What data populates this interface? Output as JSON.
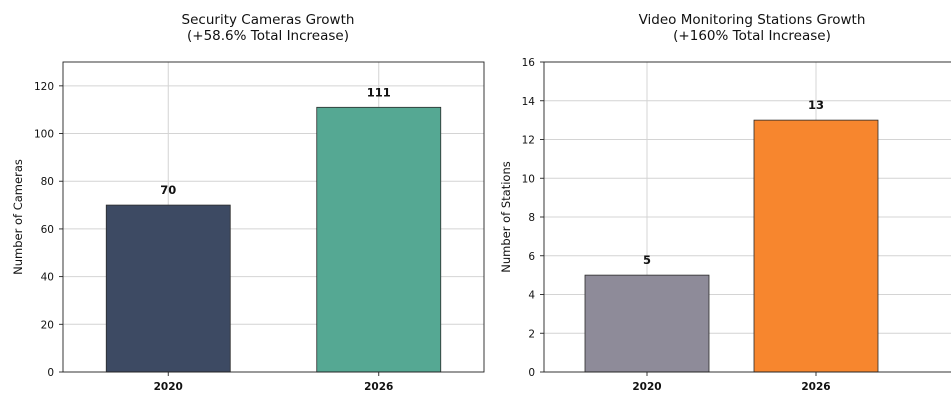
{
  "chart_data": [
    {
      "type": "bar",
      "title": "Security Cameras Growth",
      "subtitle": "(+58.6% Total Increase)",
      "xlabel": "",
      "ylabel": "Number of Cameras",
      "categories": [
        "2020",
        "2026"
      ],
      "values": [
        70,
        111
      ],
      "value_labels": [
        "70",
        "111"
      ],
      "colors": [
        "#3d4a63",
        "#55a893"
      ],
      "ylim": [
        0,
        130
      ],
      "yticks": [
        0,
        20,
        40,
        60,
        80,
        100,
        120
      ],
      "grid": true
    },
    {
      "type": "bar",
      "title": "Video Monitoring Stations Growth",
      "subtitle": "(+160% Total Increase)",
      "xlabel": "",
      "ylabel": "Number of Stations",
      "categories": [
        "2020",
        "2026"
      ],
      "values": [
        5,
        13
      ],
      "value_labels": [
        "5",
        "13"
      ],
      "colors": [
        "#8e8b99",
        "#f7862e"
      ],
      "ylim": [
        0,
        16
      ],
      "yticks": [
        0,
        2,
        4,
        6,
        8,
        10,
        12,
        14,
        16
      ],
      "grid": true
    }
  ]
}
